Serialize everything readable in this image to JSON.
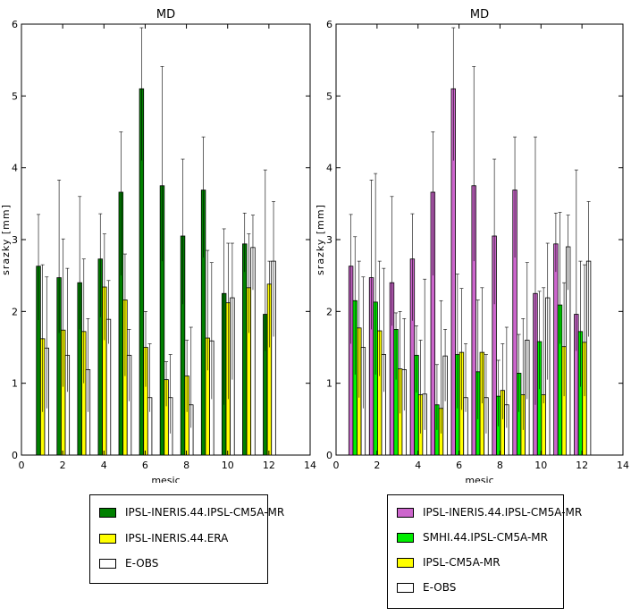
{
  "colors": {
    "dark_green": "#008000",
    "yellow": "#ffff00",
    "white": "#ffffff",
    "magenta": "#cc66cc",
    "bright_green": "#00ee00"
  },
  "chart_data": [
    {
      "type": "bar",
      "title": "MD",
      "xlabel": "mesic",
      "ylabel": "srazky [mm]",
      "xlim": [
        0,
        14
      ],
      "ylim": [
        0,
        6
      ],
      "xticks": [
        "0",
        "2",
        "4",
        "6",
        "8",
        "10",
        "12",
        "14"
      ],
      "yticks": [
        "0",
        "1",
        "2",
        "3",
        "4",
        "5",
        "6"
      ],
      "x": [
        1,
        2,
        3,
        4,
        5,
        6,
        7,
        8,
        9,
        10,
        11,
        12
      ],
      "series": [
        {
          "name": "IPSL-INERIS.44.IPSL-CM5A-MR",
          "color": "#008000",
          "values": [
            2.63,
            2.47,
            2.4,
            2.73,
            3.66,
            5.1,
            3.75,
            3.05,
            3.69,
            2.25,
            2.94,
            1.96
          ],
          "err_low": [
            1.88,
            1.7,
            1.75,
            1.92,
            2.5,
            4.1,
            2.7,
            2.1,
            2.75,
            0.7,
            2.55,
            1.45
          ],
          "err_high": [
            3.35,
            3.83,
            3.6,
            3.36,
            4.5,
            5.95,
            5.41,
            4.12,
            4.43,
            3.15,
            3.37,
            3.97
          ]
        },
        {
          "name": "IPSL-INERIS.44.ERA",
          "color": "#ffff00",
          "values": [
            1.62,
            1.74,
            1.72,
            2.34,
            2.16,
            1.5,
            1.05,
            1.1,
            1.63,
            2.12,
            2.33,
            2.38
          ],
          "err_low": [
            0.6,
            0.95,
            1.0,
            1.6,
            1.1,
            0.95,
            0.68,
            0.6,
            1.18,
            0.78,
            1.7,
            1.5
          ],
          "err_high": [
            2.65,
            3.01,
            2.73,
            3.08,
            2.8,
            2.0,
            1.3,
            1.6,
            2.85,
            2.95,
            3.08,
            2.7
          ]
        },
        {
          "name": "E-OBS",
          "color": "#ffffff",
          "values": [
            1.49,
            1.39,
            1.19,
            1.89,
            1.39,
            0.8,
            0.8,
            0.7,
            1.59,
            2.19,
            2.89,
            2.7
          ],
          "err_low": [
            0.65,
            0.88,
            0.6,
            1.55,
            0.75,
            0.6,
            0.3,
            0.38,
            0.78,
            1.05,
            2.3,
            1.65
          ],
          "err_high": [
            2.48,
            2.6,
            1.9,
            2.43,
            1.75,
            1.55,
            1.4,
            1.78,
            2.68,
            2.95,
            3.34,
            3.53
          ]
        }
      ],
      "legend": {
        "placement": "below",
        "entries": [
          "IPSL-INERIS.44.IPSL-CM5A-MR",
          "IPSL-INERIS.44.ERA",
          "E-OBS"
        ]
      }
    },
    {
      "type": "bar",
      "title": "MD",
      "xlabel": "mesic",
      "ylabel": "srazky [mm]",
      "xlim": [
        0,
        14
      ],
      "ylim": [
        0,
        6
      ],
      "xticks": [
        "0",
        "2",
        "4",
        "6",
        "8",
        "10",
        "12",
        "14"
      ],
      "yticks": [
        "0",
        "1",
        "2",
        "3",
        "4",
        "5",
        "6"
      ],
      "x": [
        1,
        2,
        3,
        4,
        5,
        6,
        7,
        8,
        9,
        10,
        11,
        12
      ],
      "series": [
        {
          "name": "IPSL-INERIS.44.IPSL-CM5A-MR",
          "color": "#cc66cc",
          "values": [
            2.63,
            2.47,
            2.4,
            2.73,
            3.66,
            5.1,
            3.75,
            3.05,
            3.69,
            2.25,
            2.94,
            1.96
          ],
          "err_low": [
            1.55,
            1.75,
            1.8,
            1.87,
            2.5,
            4.1,
            2.7,
            2.1,
            2.75,
            0.7,
            2.55,
            1.45
          ],
          "err_high": [
            3.35,
            3.83,
            3.6,
            3.36,
            4.5,
            5.95,
            5.41,
            4.12,
            4.43,
            4.43,
            3.37,
            3.97
          ]
        },
        {
          "name": "SMHI.44.IPSL-CM5A-MR",
          "color": "#00ee00",
          "values": [
            2.15,
            2.13,
            1.75,
            1.39,
            0.7,
            1.4,
            1.16,
            0.82,
            1.14,
            1.58,
            2.09,
            1.72
          ],
          "err_low": [
            1.12,
            1.12,
            1.05,
            0.87,
            0.35,
            0.65,
            0.5,
            0.4,
            0.6,
            0.92,
            1.55,
            0.95
          ],
          "err_high": [
            3.04,
            3.92,
            1.98,
            1.8,
            1.26,
            2.52,
            2.16,
            1.32,
            1.68,
            2.28,
            3.38,
            2.7
          ]
        },
        {
          "name": "IPSL-CM5A-MR",
          "color": "#ffff00",
          "values": [
            1.77,
            1.73,
            1.2,
            0.84,
            0.65,
            1.43,
            1.43,
            0.9,
            0.84,
            0.84,
            1.51,
            1.57
          ],
          "err_low": [
            0.8,
            1.1,
            0.58,
            0.3,
            0.3,
            0.63,
            0.72,
            0.5,
            0.35,
            0.72,
            0.82,
            0.82
          ],
          "err_high": [
            2.7,
            2.7,
            2.0,
            1.6,
            2.15,
            2.32,
            2.33,
            1.55,
            1.9,
            2.33,
            2.4,
            2.65
          ]
        },
        {
          "name": "E-OBS",
          "color": "#ffffff",
          "values": [
            1.5,
            1.4,
            1.19,
            0.85,
            1.38,
            0.8,
            0.8,
            0.7,
            1.6,
            2.19,
            2.9,
            2.7
          ],
          "err_low": [
            0.65,
            0.88,
            0.62,
            0.35,
            0.75,
            0.6,
            0.3,
            0.38,
            0.78,
            1.05,
            2.3,
            1.65
          ],
          "err_high": [
            2.48,
            2.6,
            1.9,
            2.45,
            1.75,
            1.55,
            1.4,
            1.78,
            2.68,
            2.95,
            3.34,
            3.53
          ]
        }
      ],
      "legend": {
        "placement": "below",
        "entries": [
          "IPSL-INERIS.44.IPSL-CM5A-MR",
          "SMHI.44.IPSL-CM5A-MR",
          "IPSL-CM5A-MR",
          "E-OBS"
        ]
      }
    }
  ]
}
